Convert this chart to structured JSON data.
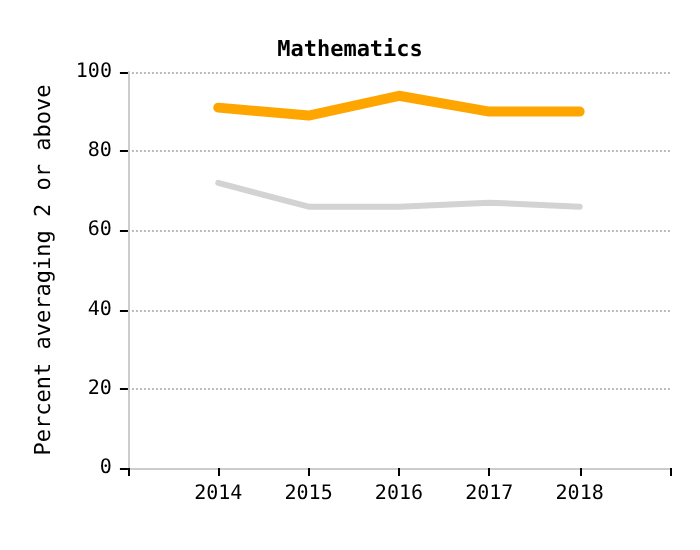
{
  "chart_data": {
    "type": "line",
    "title": "Mathematics",
    "ylabel": "Percent averaging 2 or above",
    "x": [
      2014,
      2015,
      2016,
      2017,
      2018
    ],
    "series": [
      {
        "color": "#ffa500",
        "values": [
          91,
          89,
          94,
          90,
          90
        ]
      },
      {
        "color": "#d3d3d3",
        "values": [
          72,
          66,
          66,
          67,
          66
        ]
      }
    ],
    "xlim": [
      2013,
      2019
    ],
    "xticks": [
      {
        "value": 2013,
        "label": null
      },
      2014,
      2015,
      2016,
      2017,
      2018,
      {
        "value": 2019,
        "label": null
      }
    ],
    "ylim": [
      0,
      100
    ],
    "yticks": [
      0,
      20,
      40,
      60,
      80,
      100
    ],
    "grid": "y",
    "marker": "none",
    "line_style": "solid"
  }
}
